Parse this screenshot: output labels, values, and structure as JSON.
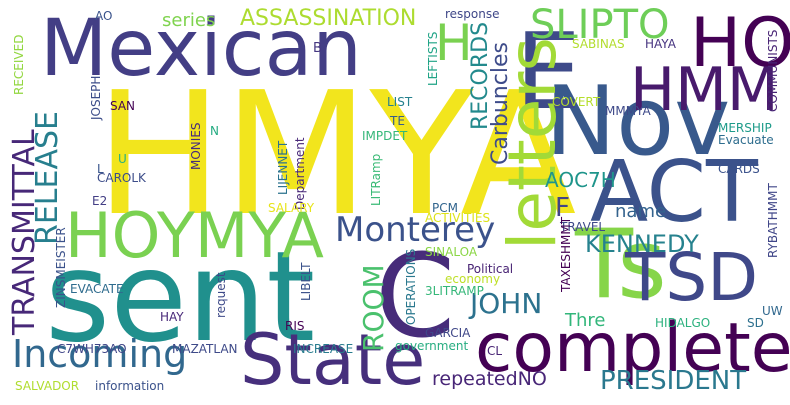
{
  "words": [
    {
      "text": "HMYA",
      "color": "#f2e51d"
    },
    {
      "text": "sent",
      "color": "#20908d"
    },
    {
      "text": "Mexican",
      "color": "#433e85"
    },
    {
      "text": "Nov",
      "color": "#38598c"
    },
    {
      "text": "State",
      "color": "#462f7c"
    },
    {
      "text": "complete",
      "color": "#440154"
    },
    {
      "text": "ACT",
      "color": "#3b528b"
    },
    {
      "text": "HOYMYA",
      "color": "#7ad151"
    },
    {
      "text": "E",
      "color": "#3e4a89"
    },
    {
      "text": "C",
      "color": "#472c7a"
    },
    {
      "text": "Ts",
      "color": "#86d549"
    },
    {
      "text": "TSD",
      "color": "#3f4889"
    },
    {
      "text": "HO",
      "color": "#440154"
    },
    {
      "text": "HMM",
      "color": "#481a6c"
    },
    {
      "text": "letters",
      "color": "#a2da37"
    },
    {
      "text": "H",
      "color": "#7ad151"
    },
    {
      "text": "SLIPTO",
      "color": "#6ece58"
    },
    {
      "text": "Incoming",
      "color": "#31688e"
    },
    {
      "text": "Monterey",
      "color": "#3b528b"
    },
    {
      "text": "TRANSMITTAL",
      "color": "#472878"
    },
    {
      "text": "RELEASE",
      "color": "#277f8e"
    },
    {
      "text": "ROOM",
      "color": "#4ac16d"
    },
    {
      "text": "JOHN",
      "color": "#2c728e"
    },
    {
      "text": "KENNEDY",
      "color": "#26828e"
    },
    {
      "text": "PRESIDENT",
      "color": "#2a788e"
    },
    {
      "text": "ASSASSINATION",
      "color": "#addc30"
    },
    {
      "text": "RECORDS",
      "color": "#238a8d"
    },
    {
      "text": "Carbuncles",
      "color": "#3e4c8a"
    },
    {
      "text": "AOC7H",
      "color": "#1f958b"
    },
    {
      "text": "F",
      "color": "#414487"
    },
    {
      "text": "name",
      "color": "#33628d"
    },
    {
      "text": "repeatedNO",
      "color": "#482677"
    },
    {
      "text": "Thre",
      "color": "#32b67a"
    },
    {
      "text": "series",
      "color": "#7fd34e"
    },
    {
      "text": "B",
      "color": "#453781"
    },
    {
      "text": "AO",
      "color": "#3a538b"
    },
    {
      "text": "response",
      "color": "#3f4788"
    },
    {
      "text": "LEFTISTS",
      "color": "#20a486"
    },
    {
      "text": "SABINAS",
      "color": "#b2dd2d"
    },
    {
      "text": "HAYA",
      "color": "#46337f"
    },
    {
      "text": "RYBATHMMT",
      "color": "#404688"
    },
    {
      "text": "COMMUNISTS",
      "color": "#482475"
    },
    {
      "text": "RECEIVED",
      "color": "#93d741"
    },
    {
      "text": "JOSEPH",
      "color": "#3d4e8a"
    },
    {
      "text": "SAN",
      "color": "#440154"
    },
    {
      "text": "LIST",
      "color": "#26818e"
    },
    {
      "text": "TE",
      "color": "#365c8d"
    },
    {
      "text": "IMPDET",
      "color": "#35b779"
    },
    {
      "text": "COVERT",
      "color": "#b5de2b"
    },
    {
      "text": "MMMYA",
      "color": "#3e4989"
    },
    {
      "text": "MERSHIP",
      "color": "#1e9b8a"
    },
    {
      "text": "Evacuate",
      "color": "#2e6d8e"
    },
    {
      "text": "CARDS",
      "color": "#3b528b"
    },
    {
      "text": "N",
      "color": "#25ac82"
    },
    {
      "text": "LIJENNET",
      "color": "#2c738e"
    },
    {
      "text": "Department",
      "color": "#482878"
    },
    {
      "text": "LITRamp",
      "color": "#3aba76"
    },
    {
      "text": "MONIES",
      "color": "#472c7a"
    },
    {
      "text": "L",
      "color": "#39558c"
    },
    {
      "text": "U",
      "color": "#2ab07f"
    },
    {
      "text": "CAROLK",
      "color": "#3d4d8a"
    },
    {
      "text": "E2",
      "color": "#433e85"
    },
    {
      "text": "SALARY",
      "color": "#e7e419"
    },
    {
      "text": "PCM",
      "color": "#32658e"
    },
    {
      "text": "ACTIVITIES",
      "color": "#dde318"
    },
    {
      "text": "TRAVEL",
      "color": "#3e4a89"
    },
    {
      "text": "TAXESHMMT",
      "color": "#440154"
    },
    {
      "text": "UW",
      "color": "#31688e"
    },
    {
      "text": "SD",
      "color": "#2d708e"
    },
    {
      "text": "HIDALGO",
      "color": "#2cb17e"
    },
    {
      "text": "ZINSMEISTER",
      "color": "#3b528b"
    },
    {
      "text": "EVACATE",
      "color": "#2f6c8e"
    },
    {
      "text": "SINALOA",
      "color": "#8bd646"
    },
    {
      "text": "economy",
      "color": "#bddf26"
    },
    {
      "text": "Political",
      "color": "#482374"
    },
    {
      "text": "3LITRAMP",
      "color": "#35b779"
    },
    {
      "text": "HAY",
      "color": "#482878"
    },
    {
      "text": "request",
      "color": "#3e4a89"
    },
    {
      "text": "LIBELT",
      "color": "#3b528b"
    },
    {
      "text": "RIS",
      "color": "#440154"
    },
    {
      "text": "OPERATIONS",
      "color": "#2a788e"
    },
    {
      "text": "GARCIA",
      "color": "#3f4788"
    },
    {
      "text": "CL",
      "color": "#482475"
    },
    {
      "text": "C7WH73AO",
      "color": "#404688"
    },
    {
      "text": "MAZATLAN",
      "color": "#3e4a89"
    },
    {
      "text": "INCREASE",
      "color": "#287c8e"
    },
    {
      "text": "government",
      "color": "#27ad81"
    },
    {
      "text": "SALVADOR",
      "color": "#b0dd2f"
    },
    {
      "text": "information",
      "color": "#3b528b"
    }
  ]
}
